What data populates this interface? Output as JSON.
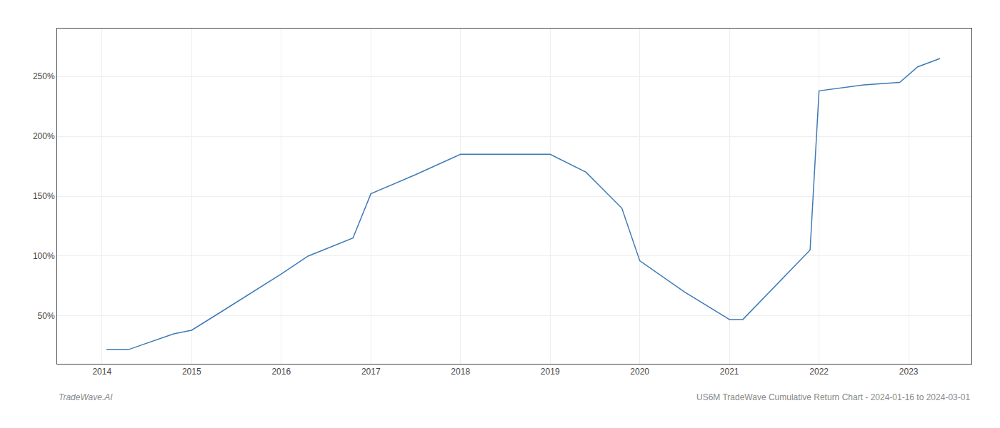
{
  "chart_data": {
    "type": "line",
    "x": [
      2014.05,
      2014.3,
      2014.8,
      2015.0,
      2015.3,
      2016.0,
      2016.3,
      2016.8,
      2017.0,
      2017.5,
      2018.0,
      2018.5,
      2019.0,
      2019.4,
      2019.8,
      2020.0,
      2020.5,
      2021.0,
      2021.15,
      2021.9,
      2022.0,
      2022.5,
      2022.9,
      2023.1,
      2023.35
    ],
    "values": [
      22,
      22,
      35,
      38,
      52,
      85,
      100,
      115,
      152,
      168,
      185,
      185,
      185,
      170,
      140,
      96,
      70,
      47,
      47,
      105,
      238,
      243,
      245,
      258,
      265
    ],
    "color": "#3d7ab5",
    "xlim": [
      2013.5,
      2023.7
    ],
    "xticks": [
      2014,
      2015,
      2016,
      2017,
      2018,
      2019,
      2020,
      2021,
      2022,
      2023
    ],
    "ylim": [
      10,
      290
    ],
    "yticks": [
      {
        "value": 50,
        "label": "50%"
      },
      {
        "value": 100,
        "label": "100%"
      },
      {
        "value": 150,
        "label": "150%"
      },
      {
        "value": 200,
        "label": "200%"
      },
      {
        "value": 250,
        "label": "250%"
      }
    ],
    "grid": true,
    "annotations": [
      "TradeWave.AI",
      "US6M TradeWave Cumulative Return Chart - 2024-01-16 to 2024-03-01"
    ]
  }
}
